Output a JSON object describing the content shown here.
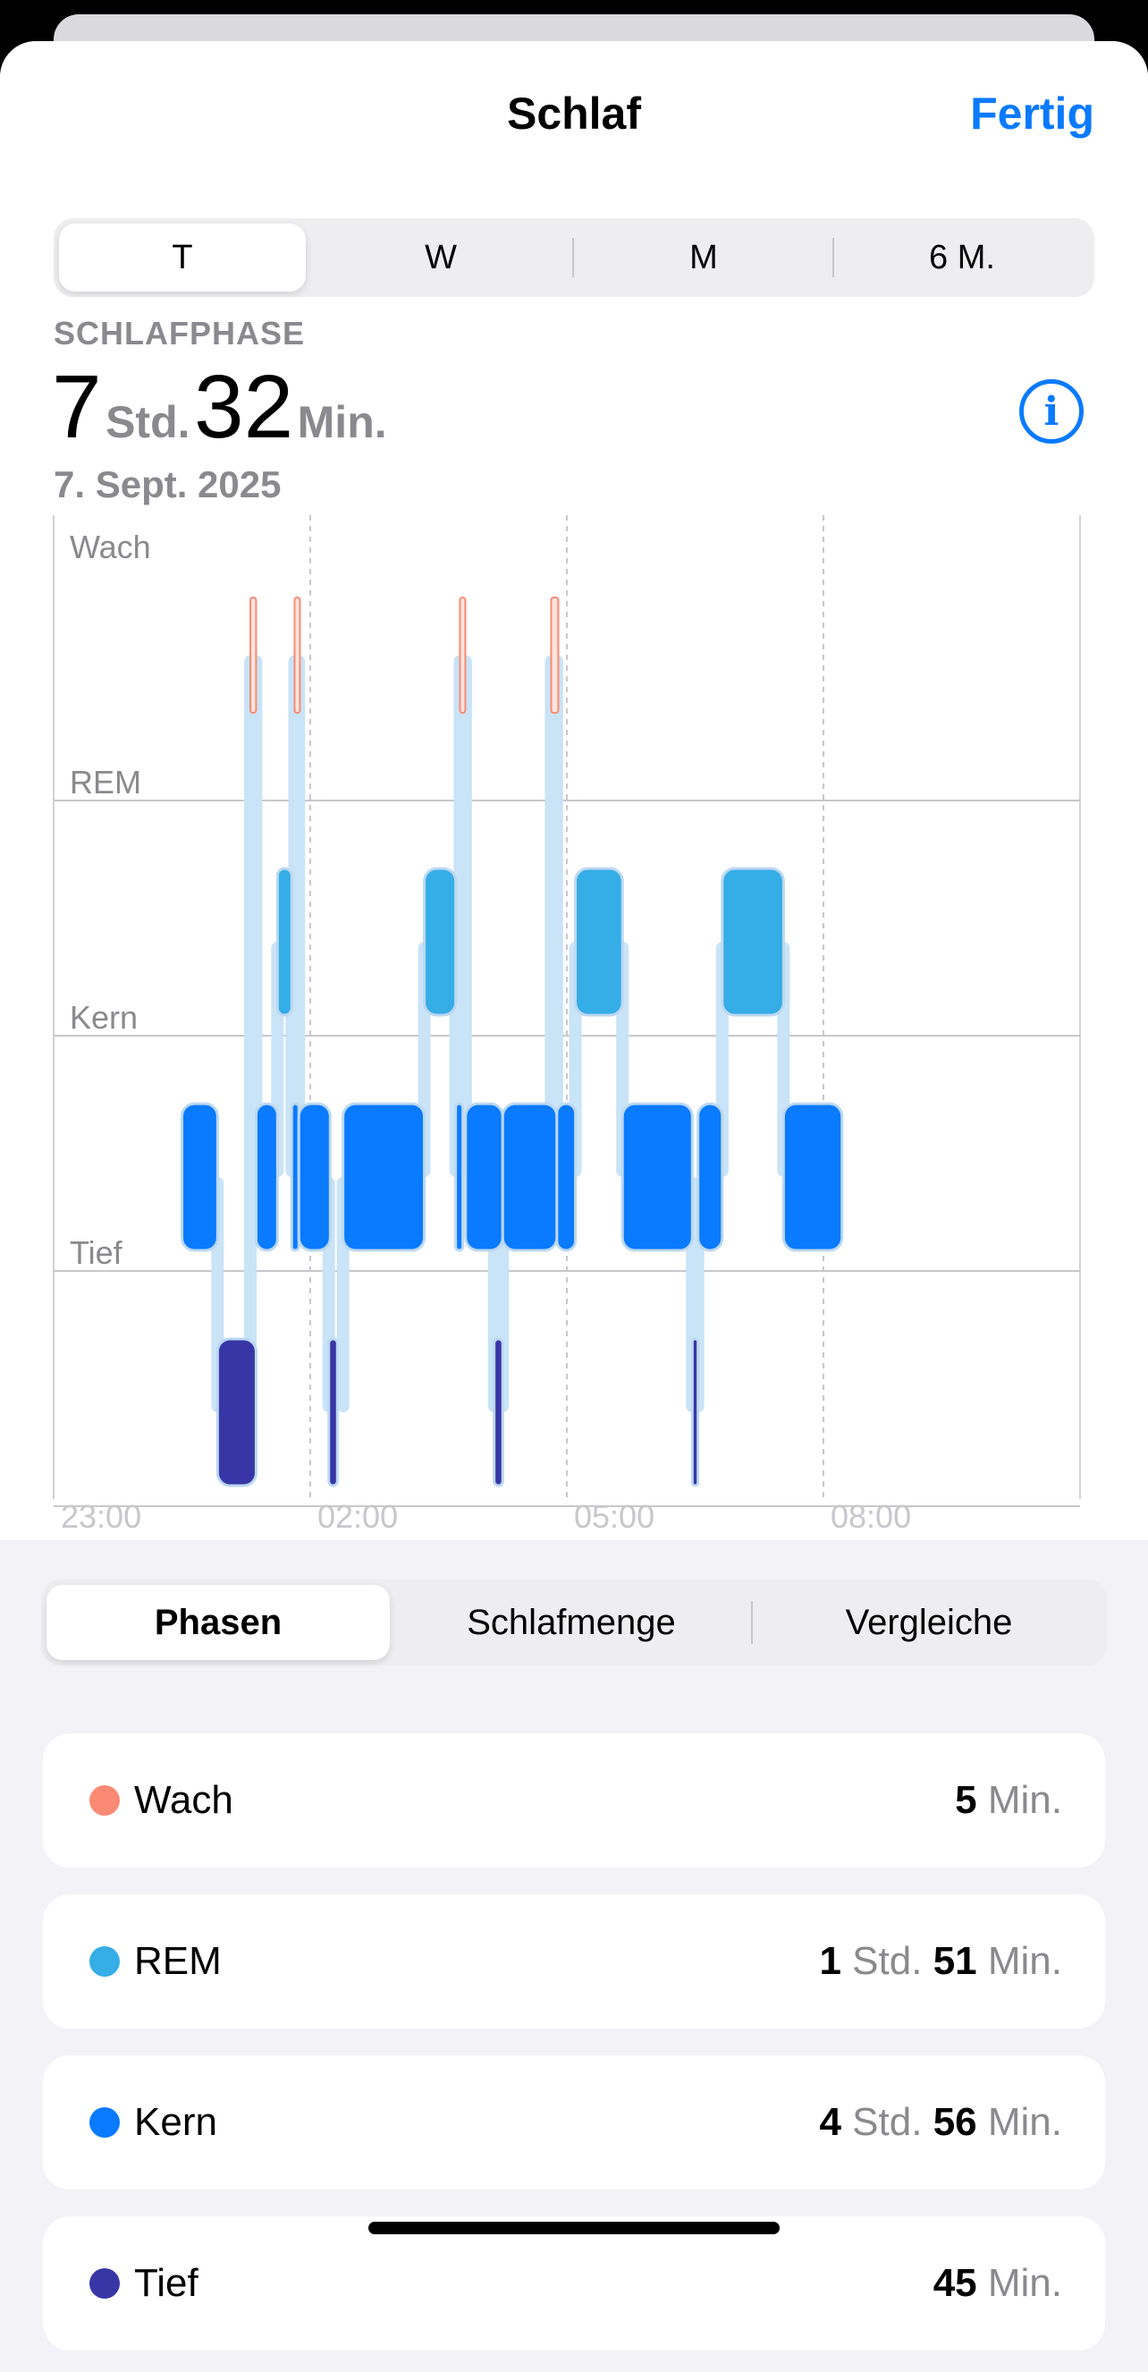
{
  "header": {
    "title": "Schlaf",
    "done_label": "Fertig"
  },
  "range_tabs": [
    {
      "label": "T",
      "active": true
    },
    {
      "label": "W",
      "active": false
    },
    {
      "label": "M",
      "active": false
    },
    {
      "label": "6 M.",
      "active": false
    }
  ],
  "summary": {
    "label": "SCHLAFPHASE",
    "hours": "7",
    "hours_unit": "Std.",
    "minutes": "32",
    "minutes_unit": "Min.",
    "date": "7. Sept. 2025",
    "info_icon": "info-circle-icon"
  },
  "chart_data": {
    "type": "timeline",
    "stages": [
      "Wach",
      "REM",
      "Kern",
      "Tief"
    ],
    "x_ticks": [
      "23:00",
      "02:00",
      "05:00",
      "08:00"
    ],
    "x_tick_minutes": [
      0,
      180,
      360,
      540
    ],
    "x_range_minutes": [
      0,
      720
    ],
    "colors": {
      "Wach": "#fa8a73",
      "REM": "#35ade7",
      "Kern": "#0a7aff",
      "Tief": "#3836a6"
    },
    "segments": [
      {
        "stage": "Kern",
        "start": 90,
        "end": 115
      },
      {
        "stage": "Tief",
        "start": 115,
        "end": 142
      },
      {
        "stage": "Wach",
        "start": 138,
        "end": 142
      },
      {
        "stage": "Kern",
        "start": 142,
        "end": 157
      },
      {
        "stage": "REM",
        "start": 157,
        "end": 167
      },
      {
        "stage": "Wach",
        "start": 169,
        "end": 172
      },
      {
        "stage": "Kern",
        "start": 167,
        "end": 172
      },
      {
        "stage": "Kern",
        "start": 172,
        "end": 194
      },
      {
        "stage": "Tief",
        "start": 193,
        "end": 199
      },
      {
        "stage": "Kern",
        "start": 203,
        "end": 260
      },
      {
        "stage": "REM",
        "start": 260,
        "end": 282
      },
      {
        "stage": "Wach",
        "start": 285,
        "end": 288
      },
      {
        "stage": "Kern",
        "start": 282,
        "end": 287
      },
      {
        "stage": "Kern",
        "start": 289,
        "end": 315
      },
      {
        "stage": "Tief",
        "start": 309,
        "end": 315
      },
      {
        "stage": "Kern",
        "start": 315,
        "end": 353
      },
      {
        "stage": "Wach",
        "start": 349,
        "end": 354
      },
      {
        "stage": "Kern",
        "start": 353,
        "end": 366
      },
      {
        "stage": "REM",
        "start": 366,
        "end": 399
      },
      {
        "stage": "Kern",
        "start": 399,
        "end": 448
      },
      {
        "stage": "Tief",
        "start": 448,
        "end": 452
      },
      {
        "stage": "Kern",
        "start": 452,
        "end": 469
      },
      {
        "stage": "REM",
        "start": 469,
        "end": 512
      },
      {
        "stage": "Kern",
        "start": 512,
        "end": 553
      }
    ]
  },
  "view_tabs": [
    {
      "label": "Phasen",
      "active": true
    },
    {
      "label": "Schlafmenge",
      "active": false
    },
    {
      "label": "Vergleiche",
      "active": false
    }
  ],
  "breakdown": [
    {
      "stage": "Wach",
      "color": "#fa8a73",
      "parts": [
        {
          "n": "5",
          "u": "Min."
        }
      ]
    },
    {
      "stage": "REM",
      "color": "#35ade7",
      "parts": [
        {
          "n": "1",
          "u": "Std."
        },
        {
          "n": "51",
          "u": "Min."
        }
      ]
    },
    {
      "stage": "Kern",
      "color": "#0a7aff",
      "parts": [
        {
          "n": "4",
          "u": "Std."
        },
        {
          "n": "56",
          "u": "Min."
        }
      ]
    },
    {
      "stage": "Tief",
      "color": "#3836a6",
      "parts": [
        {
          "n": "45",
          "u": "Min."
        }
      ]
    }
  ]
}
